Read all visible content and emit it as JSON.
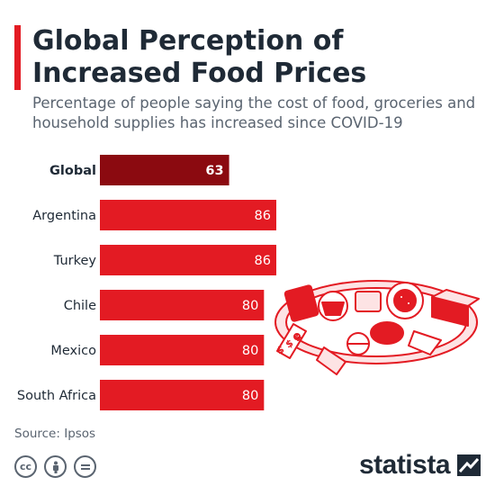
{
  "header": {
    "title": "Global Perception of Increased Food Prices",
    "subtitle": "Percentage of people saying the cost of food, groceries and household supplies has increased since COVID-19"
  },
  "footer": {
    "source": "Source: Ipsos",
    "brand": "statista",
    "license_icons": [
      "cc-icon",
      "attribution-icon",
      "no-derivatives-icon"
    ]
  },
  "colors": {
    "accent": "#e31b23",
    "bar_highlight": "#8b0a10",
    "bar_default": "#e31b23",
    "text_dark": "#1f2a36"
  },
  "chart_data": {
    "type": "bar",
    "orientation": "horizontal",
    "categories": [
      "Global",
      "Argentina",
      "Turkey",
      "Chile",
      "Mexico",
      "South Africa"
    ],
    "values": [
      63,
      86,
      86,
      80,
      80,
      80
    ],
    "highlight": "Global",
    "data_labels": true,
    "grid": false,
    "xlim": [
      0,
      100
    ]
  }
}
